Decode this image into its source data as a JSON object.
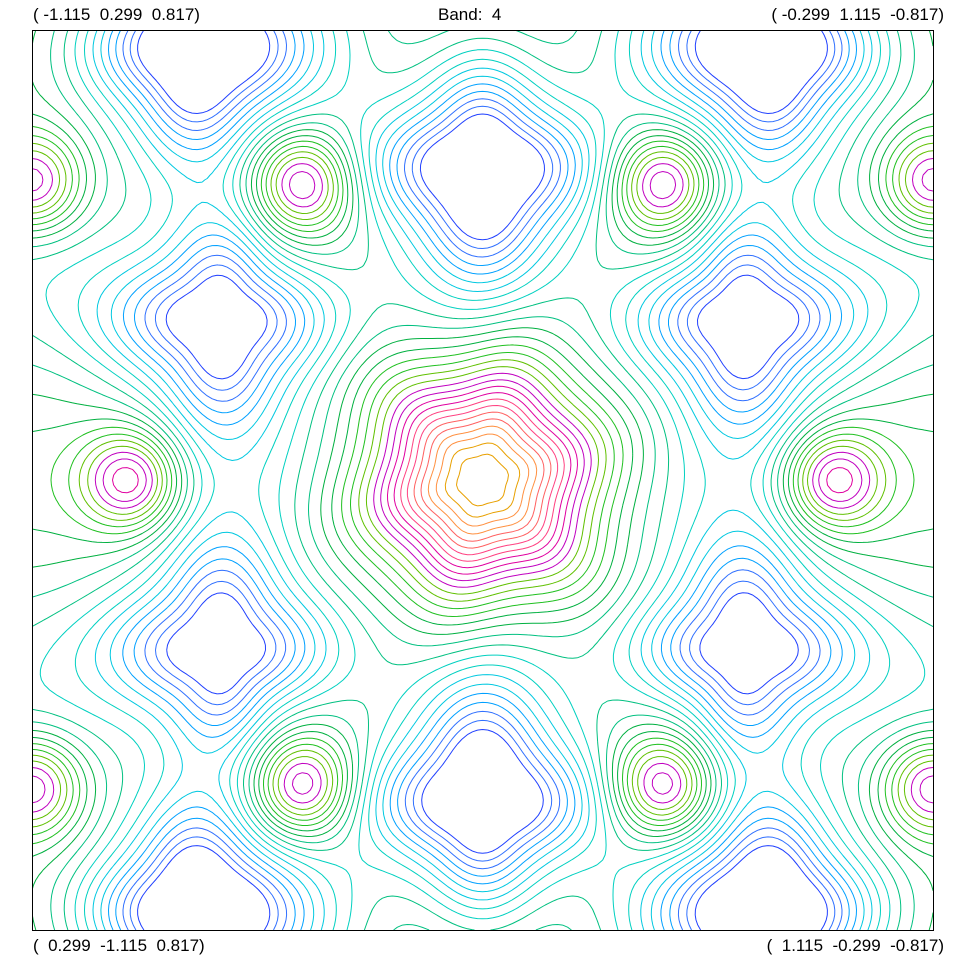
{
  "header": {
    "top_left": "( -1.115  0.299  0.817)",
    "title": "Band:  4",
    "top_right": "( -0.299  1.115  -0.817)"
  },
  "footer": {
    "bottom_left": "(  0.299  -1.115  0.817)",
    "bottom_right": "(  1.115  -0.299  -0.817)"
  },
  "chart_data": {
    "type": "contour",
    "band": 4,
    "corners": {
      "top_left": [
        -1.115,
        0.299,
        0.817
      ],
      "top_right": [
        -0.299,
        1.115,
        -0.817
      ],
      "bottom_left": [
        0.299,
        -1.115,
        0.817
      ],
      "bottom_right": [
        1.115,
        -0.299,
        -0.817
      ]
    },
    "color_scale": [
      "#0000a0",
      "#1010c0",
      "#2040ff",
      "#3070ff",
      "#00a0ff",
      "#00c8e0",
      "#00d0c0",
      "#00c080",
      "#00b040",
      "#20c020",
      "#60c000",
      "#c000c0",
      "#e000a0",
      "#ff4080",
      "#ff6060",
      "#ff9040",
      "#e8a000"
    ],
    "features": {
      "center_maximum": "orange six-lobed peak at plot center",
      "minima": "blue four-lobed wells arranged around the center",
      "secondary_maxima": "magenta triplets at the left and right edges and in the four corner regions"
    }
  }
}
